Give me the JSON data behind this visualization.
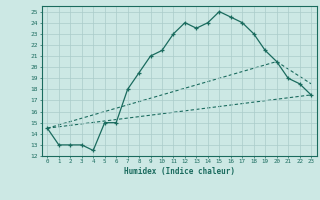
{
  "xlabel": "Humidex (Indice chaleur)",
  "bg_color": "#cce8e4",
  "line_color": "#1a6b5e",
  "grid_color": "#aaccca",
  "xlim": [
    -0.5,
    23.5
  ],
  "ylim": [
    12,
    25.5
  ],
  "yticks": [
    12,
    13,
    14,
    15,
    16,
    17,
    18,
    19,
    20,
    21,
    22,
    23,
    24,
    25
  ],
  "xticks": [
    0,
    1,
    2,
    3,
    4,
    5,
    6,
    7,
    8,
    9,
    10,
    11,
    12,
    13,
    14,
    15,
    16,
    17,
    18,
    19,
    20,
    21,
    22,
    23
  ],
  "line1_x": [
    0,
    1,
    2,
    3,
    4,
    5,
    6,
    7,
    8,
    9,
    10,
    11,
    12,
    13,
    14,
    15,
    16,
    17,
    18,
    19,
    20,
    21,
    22,
    23
  ],
  "line1_y": [
    14.5,
    13.0,
    13.0,
    13.0,
    12.5,
    15.0,
    15.0,
    18.0,
    19.5,
    21.0,
    21.5,
    23.0,
    24.0,
    23.5,
    24.0,
    25.0,
    24.5,
    24.0,
    23.0,
    21.5,
    20.5,
    19.0,
    18.5,
    17.5
  ],
  "line2_x": [
    0,
    23
  ],
  "line2_y": [
    14.5,
    17.5
  ],
  "line3_x": [
    0,
    20,
    23
  ],
  "line3_y": [
    14.5,
    20.5,
    18.5
  ]
}
